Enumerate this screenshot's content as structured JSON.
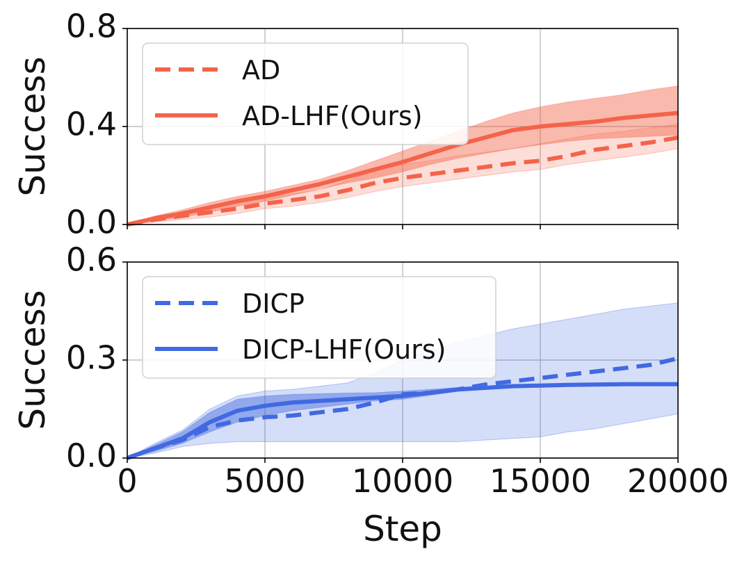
{
  "chart_data": [
    {
      "type": "line",
      "xlabel": "",
      "ylabel": "Success",
      "xlim": [
        0,
        20000
      ],
      "ylim": [
        0,
        0.8
      ],
      "xticks": [
        0,
        5000,
        10000,
        15000,
        20000
      ],
      "yticks": [
        0.0,
        0.4,
        0.8
      ],
      "ytick_labels": [
        "0.0",
        "0.4",
        "0.8"
      ],
      "grid": true,
      "legend_position": "top-left",
      "color": "#f4634a",
      "series": [
        {
          "name": "AD",
          "style": "dashed",
          "x": [
            0,
            1000,
            2000,
            3000,
            4000,
            5000,
            6000,
            7000,
            8000,
            9000,
            10000,
            11000,
            12000,
            13000,
            14000,
            15000,
            16000,
            17000,
            18000,
            19000,
            20000
          ],
          "values": [
            0.0,
            0.02,
            0.035,
            0.05,
            0.065,
            0.085,
            0.1,
            0.115,
            0.14,
            0.17,
            0.19,
            0.205,
            0.22,
            0.235,
            0.25,
            0.26,
            0.28,
            0.305,
            0.32,
            0.335,
            0.355
          ],
          "lower": [
            0.0,
            0.01,
            0.02,
            0.03,
            0.045,
            0.065,
            0.075,
            0.09,
            0.11,
            0.135,
            0.155,
            0.17,
            0.185,
            0.2,
            0.215,
            0.225,
            0.245,
            0.26,
            0.275,
            0.29,
            0.31
          ],
          "upper": [
            0.0,
            0.03,
            0.05,
            0.07,
            0.09,
            0.11,
            0.125,
            0.14,
            0.18,
            0.22,
            0.245,
            0.26,
            0.28,
            0.295,
            0.31,
            0.33,
            0.35,
            0.37,
            0.38,
            0.395,
            0.41
          ]
        },
        {
          "name": "AD-LHF(Ours)",
          "style": "solid",
          "x": [
            0,
            1000,
            2000,
            3000,
            4000,
            5000,
            6000,
            7000,
            8000,
            9000,
            10000,
            11000,
            12000,
            13000,
            14000,
            15000,
            16000,
            17000,
            18000,
            19000,
            20000
          ],
          "values": [
            0.0,
            0.025,
            0.045,
            0.07,
            0.095,
            0.115,
            0.14,
            0.165,
            0.195,
            0.225,
            0.255,
            0.29,
            0.325,
            0.355,
            0.385,
            0.4,
            0.41,
            0.42,
            0.435,
            0.445,
            0.455
          ],
          "lower": [
            0.0,
            0.015,
            0.03,
            0.05,
            0.075,
            0.095,
            0.12,
            0.145,
            0.17,
            0.19,
            0.215,
            0.245,
            0.27,
            0.29,
            0.31,
            0.325,
            0.34,
            0.35,
            0.355,
            0.36,
            0.365
          ],
          "upper": [
            0.0,
            0.035,
            0.06,
            0.09,
            0.115,
            0.135,
            0.16,
            0.185,
            0.22,
            0.26,
            0.3,
            0.34,
            0.38,
            0.42,
            0.455,
            0.48,
            0.5,
            0.515,
            0.53,
            0.55,
            0.565
          ]
        }
      ]
    },
    {
      "type": "line",
      "xlabel": "Step",
      "ylabel": "Success",
      "xlim": [
        0,
        20000
      ],
      "ylim": [
        0,
        0.6
      ],
      "xticks": [
        0,
        5000,
        10000,
        15000,
        20000
      ],
      "xtick_labels": [
        "0",
        "5000",
        "10000",
        "15000",
        "20000"
      ],
      "yticks": [
        0.0,
        0.3,
        0.6
      ],
      "ytick_labels": [
        "0.0",
        "0.3",
        "0.6"
      ],
      "grid": true,
      "legend_position": "top-left",
      "color": "#4169e1",
      "series": [
        {
          "name": "DICP",
          "style": "dashed",
          "x": [
            0,
            1000,
            2000,
            3000,
            4000,
            5000,
            6000,
            7000,
            8000,
            9000,
            10000,
            11000,
            12000,
            13000,
            14000,
            15000,
            16000,
            17000,
            18000,
            19000,
            20000
          ],
          "values": [
            0.0,
            0.03,
            0.055,
            0.095,
            0.115,
            0.125,
            0.13,
            0.14,
            0.15,
            0.17,
            0.195,
            0.2,
            0.21,
            0.225,
            0.235,
            0.245,
            0.255,
            0.265,
            0.275,
            0.285,
            0.305
          ],
          "lower": [
            0.0,
            0.015,
            0.035,
            0.045,
            0.05,
            0.05,
            0.05,
            0.05,
            0.05,
            0.05,
            0.05,
            0.05,
            0.05,
            0.055,
            0.06,
            0.065,
            0.08,
            0.09,
            0.105,
            0.12,
            0.135
          ],
          "upper": [
            0.0,
            0.045,
            0.085,
            0.15,
            0.19,
            0.205,
            0.21,
            0.22,
            0.23,
            0.26,
            0.3,
            0.33,
            0.355,
            0.375,
            0.395,
            0.41,
            0.425,
            0.44,
            0.455,
            0.465,
            0.475
          ]
        },
        {
          "name": "DICP-LHF(Ours)",
          "style": "solid",
          "x": [
            0,
            1000,
            2000,
            3000,
            4000,
            5000,
            6000,
            7000,
            8000,
            9000,
            10000,
            11000,
            12000,
            13000,
            14000,
            15000,
            16000,
            17000,
            18000,
            19000,
            20000
          ],
          "values": [
            0.0,
            0.03,
            0.06,
            0.11,
            0.145,
            0.16,
            0.17,
            0.175,
            0.18,
            0.185,
            0.19,
            0.2,
            0.21,
            0.215,
            0.22,
            0.222,
            0.224,
            0.225,
            0.226,
            0.226,
            0.226
          ],
          "lower": [
            0.0,
            0.02,
            0.045,
            0.08,
            0.11,
            0.13,
            0.145,
            0.155,
            0.165,
            0.175,
            0.18,
            0.192,
            0.204,
            0.21,
            0.215,
            0.218,
            0.22,
            0.221,
            0.222,
            0.222,
            0.222
          ],
          "upper": [
            0.0,
            0.04,
            0.08,
            0.14,
            0.18,
            0.19,
            0.195,
            0.197,
            0.199,
            0.2,
            0.205,
            0.21,
            0.216,
            0.22,
            0.225,
            0.226,
            0.228,
            0.229,
            0.23,
            0.23,
            0.23
          ]
        }
      ]
    }
  ]
}
